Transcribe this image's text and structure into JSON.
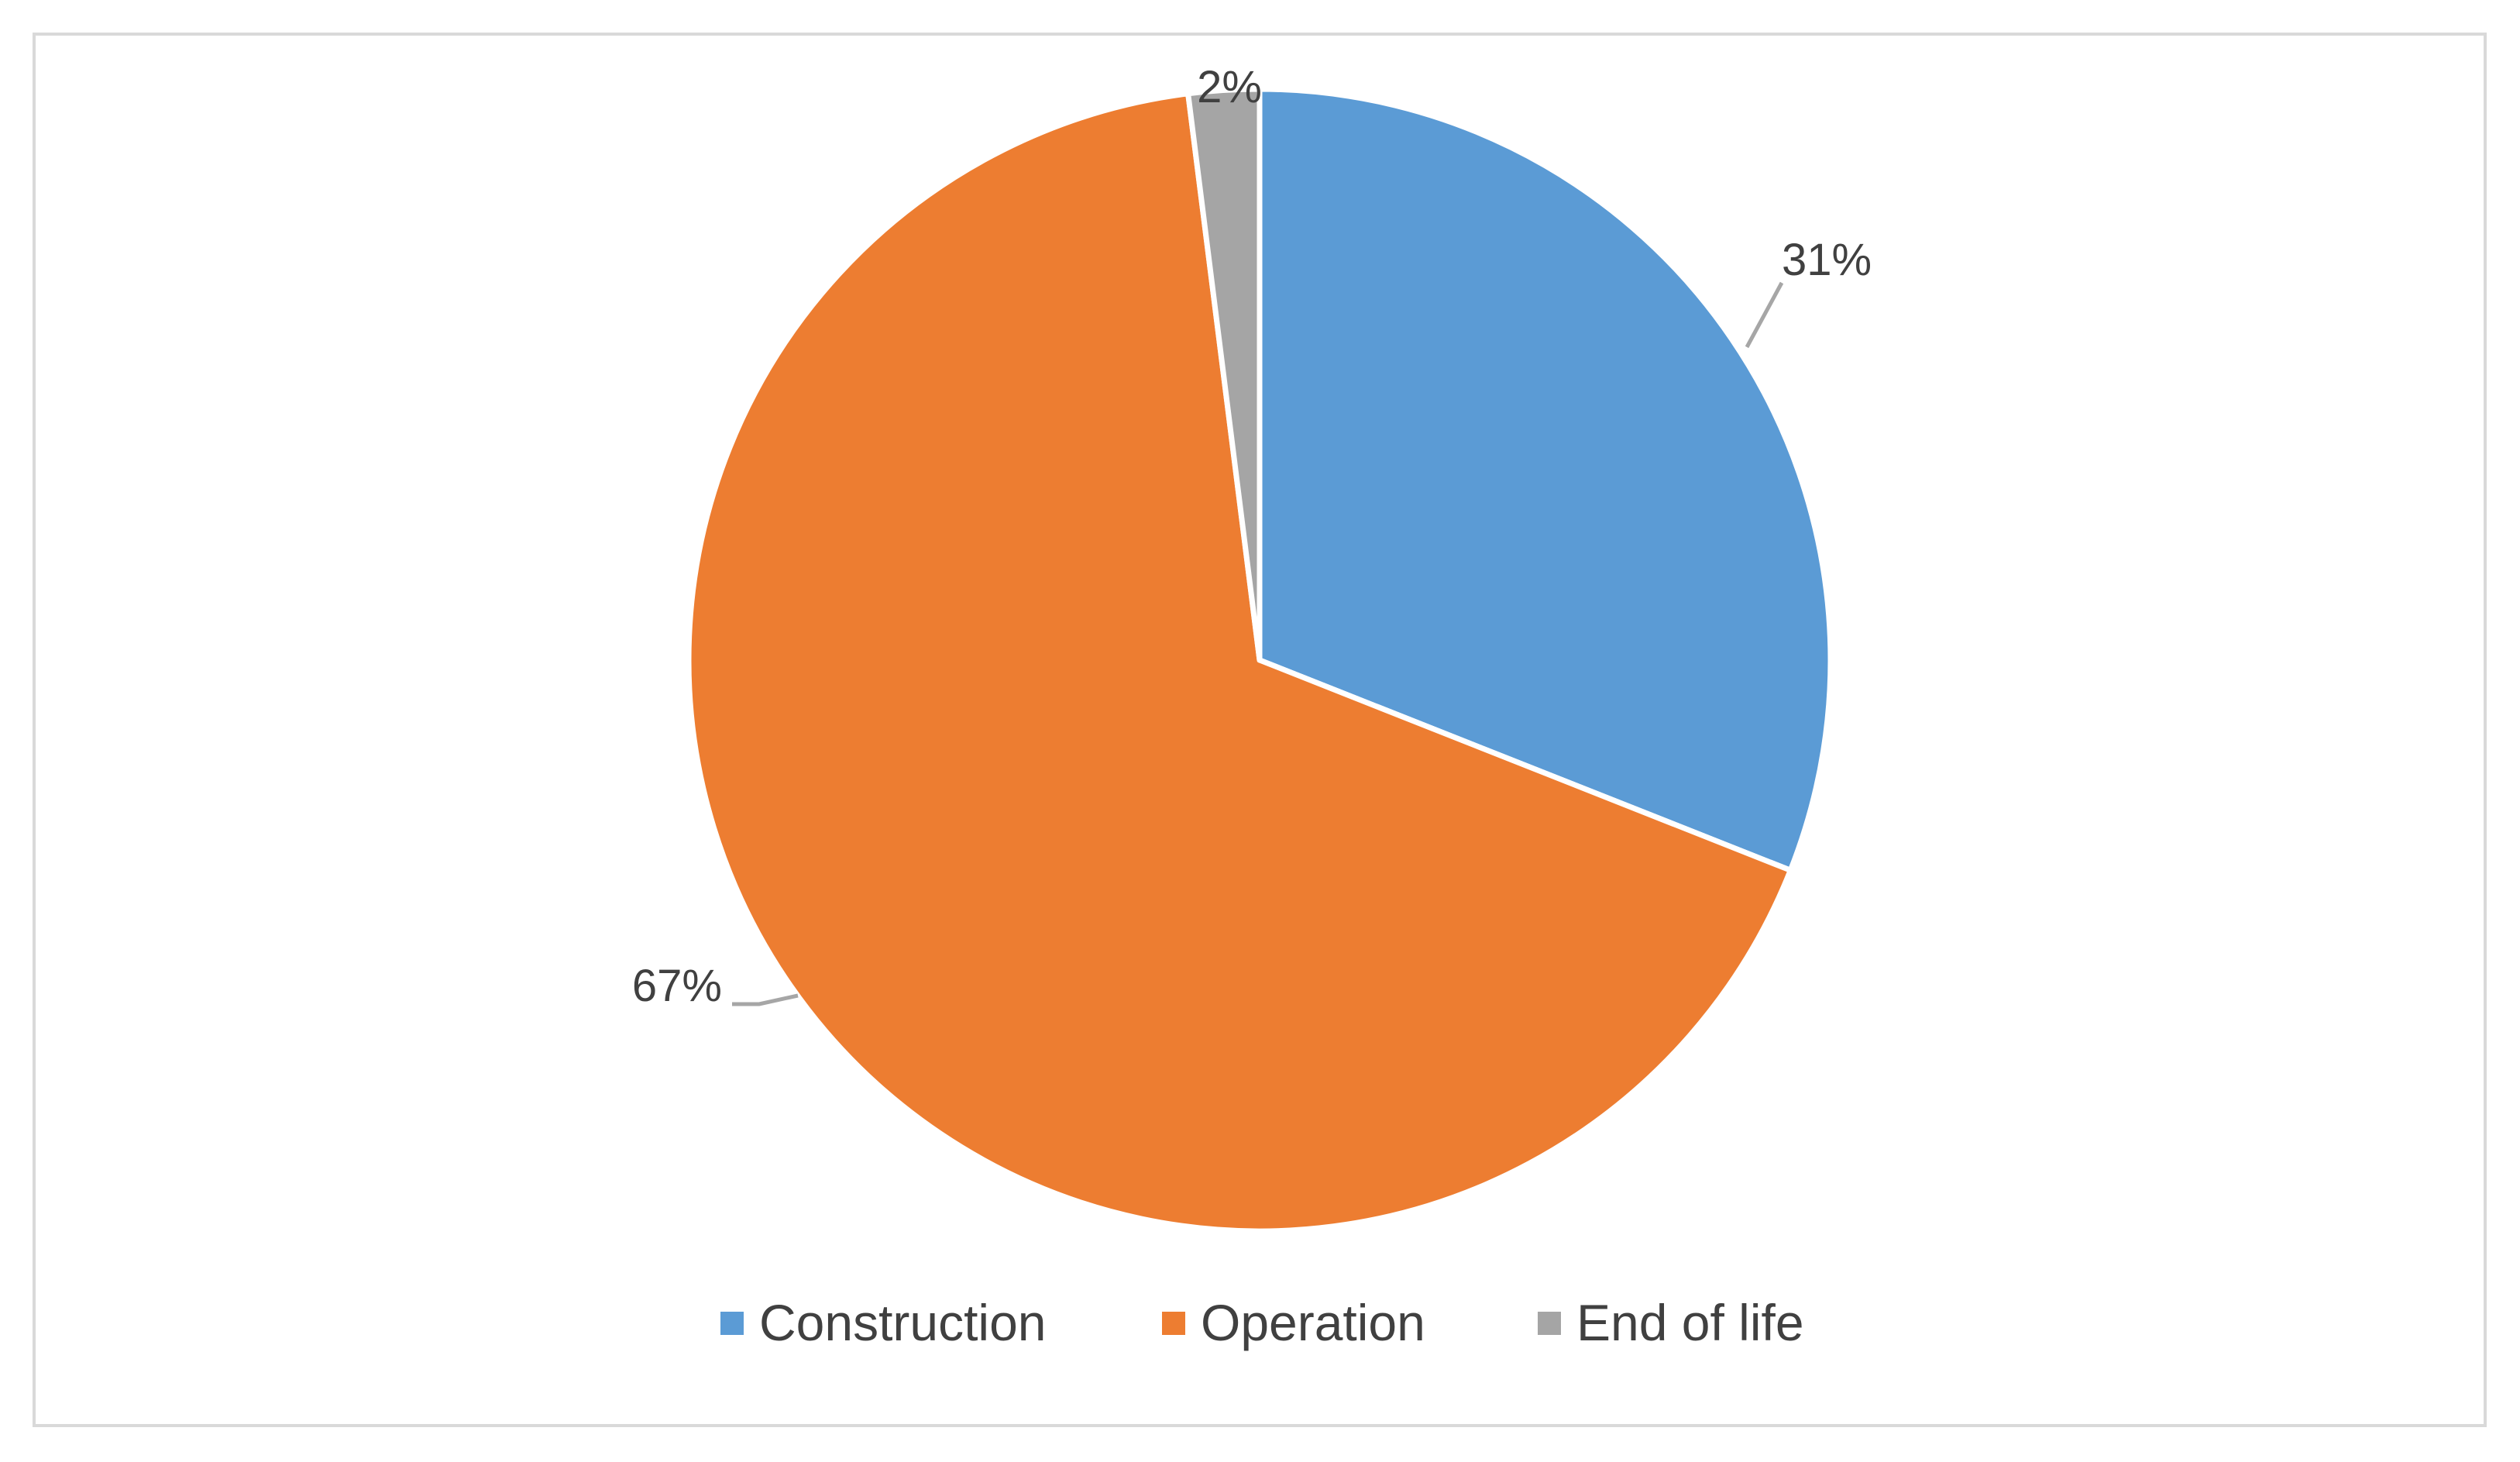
{
  "chart_data": {
    "type": "pie",
    "title": "",
    "categories": [
      "Construction",
      "Operation",
      "End of life"
    ],
    "values": [
      31,
      67,
      2
    ],
    "unit": "%",
    "labels": [
      "31%",
      "67%",
      "2%"
    ],
    "colors": [
      "#5b9bd5",
      "#ed7d31",
      "#a5a5a5"
    ],
    "legend_position": "bottom",
    "start_angle_deg": 0,
    "direction": "clockwise",
    "leader_line_color": "#a6a6a6",
    "border_color": "#d9d9d9"
  }
}
